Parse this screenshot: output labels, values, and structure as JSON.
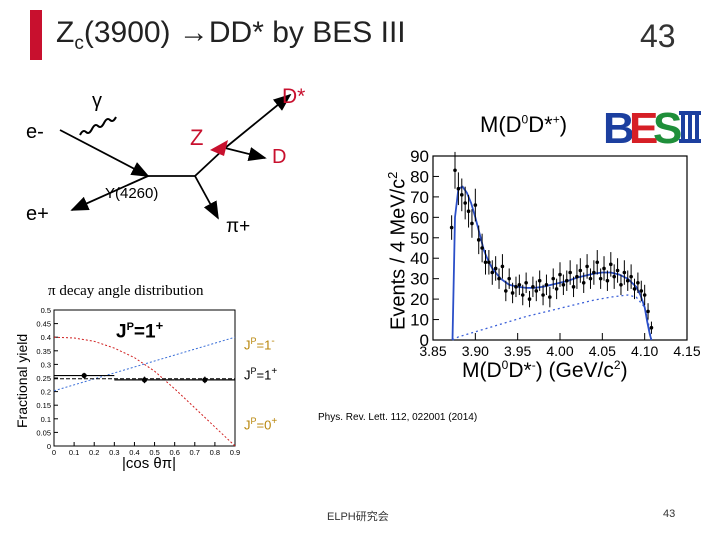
{
  "slide": {
    "title_main": "Z",
    "title_sub": "c",
    "title_rest": "(3900) →DD* by BES III",
    "page_number": "43",
    "footer_org": "ELPH研究会",
    "footer_page": "43",
    "reference": "Phys. Rev. Lett. 112, 022001 (2014)"
  },
  "feynman": {
    "gamma": "γ",
    "e_minus": "e-",
    "e_plus": "e+",
    "z": "Z",
    "d_star": "D*",
    "d": "D",
    "y4260": "Y(4260)",
    "pi_plus": "π+"
  },
  "chart_data": [
    {
      "type": "histogram",
      "title": "M(D0D*+)",
      "xlabel": "M(D0D*-) (GeV/c2)",
      "ylabel": "Events / 4 MeV/c2",
      "xlim": [
        3.85,
        4.15
      ],
      "ylim": [
        0,
        90
      ],
      "x_ticks": [
        "3.85",
        "3.90",
        "3.95",
        "4.00",
        "4.05",
        "4.10",
        "4.15"
      ],
      "y_ticks": [
        "0",
        "10",
        "20",
        "30",
        "40",
        "50",
        "60",
        "70",
        "80",
        "90"
      ],
      "points": [
        {
          "x": 3.872,
          "y": 55,
          "err": 6
        },
        {
          "x": 3.876,
          "y": 83,
          "err": 9
        },
        {
          "x": 3.88,
          "y": 74,
          "err": 8
        },
        {
          "x": 3.884,
          "y": 71,
          "err": 8
        },
        {
          "x": 3.888,
          "y": 67,
          "err": 8
        },
        {
          "x": 3.892,
          "y": 63,
          "err": 8
        },
        {
          "x": 3.896,
          "y": 57,
          "err": 7
        },
        {
          "x": 3.9,
          "y": 66,
          "err": 8
        },
        {
          "x": 3.904,
          "y": 49,
          "err": 7
        },
        {
          "x": 3.908,
          "y": 45,
          "err": 7
        },
        {
          "x": 3.912,
          "y": 38,
          "err": 6
        },
        {
          "x": 3.916,
          "y": 38,
          "err": 6
        },
        {
          "x": 3.92,
          "y": 33,
          "err": 6
        },
        {
          "x": 3.924,
          "y": 35,
          "err": 6
        },
        {
          "x": 3.928,
          "y": 30,
          "err": 5
        },
        {
          "x": 3.932,
          "y": 36,
          "err": 6
        },
        {
          "x": 3.936,
          "y": 24,
          "err": 5
        },
        {
          "x": 3.94,
          "y": 30,
          "err": 5
        },
        {
          "x": 3.944,
          "y": 23,
          "err": 5
        },
        {
          "x": 3.948,
          "y": 26,
          "err": 5
        },
        {
          "x": 3.952,
          "y": 27,
          "err": 5
        },
        {
          "x": 3.956,
          "y": 22,
          "err": 5
        },
        {
          "x": 3.96,
          "y": 28,
          "err": 5
        },
        {
          "x": 3.964,
          "y": 20,
          "err": 4
        },
        {
          "x": 3.968,
          "y": 26,
          "err": 5
        },
        {
          "x": 3.972,
          "y": 24,
          "err": 5
        },
        {
          "x": 3.976,
          "y": 29,
          "err": 5
        },
        {
          "x": 3.98,
          "y": 22,
          "err": 5
        },
        {
          "x": 3.984,
          "y": 27,
          "err": 5
        },
        {
          "x": 3.988,
          "y": 21,
          "err": 5
        },
        {
          "x": 3.992,
          "y": 30,
          "err": 5
        },
        {
          "x": 3.996,
          "y": 25,
          "err": 5
        },
        {
          "x": 4.0,
          "y": 32,
          "err": 6
        },
        {
          "x": 4.004,
          "y": 27,
          "err": 5
        },
        {
          "x": 4.008,
          "y": 29,
          "err": 5
        },
        {
          "x": 4.012,
          "y": 33,
          "err": 6
        },
        {
          "x": 4.016,
          "y": 26,
          "err": 5
        },
        {
          "x": 4.02,
          "y": 31,
          "err": 6
        },
        {
          "x": 4.024,
          "y": 34,
          "err": 6
        },
        {
          "x": 4.028,
          "y": 28,
          "err": 5
        },
        {
          "x": 4.032,
          "y": 36,
          "err": 6
        },
        {
          "x": 4.036,
          "y": 30,
          "err": 5
        },
        {
          "x": 4.04,
          "y": 33,
          "err": 6
        },
        {
          "x": 4.044,
          "y": 38,
          "err": 6
        },
        {
          "x": 4.048,
          "y": 30,
          "err": 5
        },
        {
          "x": 4.052,
          "y": 35,
          "err": 6
        },
        {
          "x": 4.056,
          "y": 29,
          "err": 5
        },
        {
          "x": 4.06,
          "y": 37,
          "err": 6
        },
        {
          "x": 4.064,
          "y": 31,
          "err": 6
        },
        {
          "x": 4.068,
          "y": 34,
          "err": 6
        },
        {
          "x": 4.072,
          "y": 27,
          "err": 5
        },
        {
          "x": 4.076,
          "y": 33,
          "err": 6
        },
        {
          "x": 4.08,
          "y": 29,
          "err": 5
        },
        {
          "x": 4.084,
          "y": 31,
          "err": 6
        },
        {
          "x": 4.088,
          "y": 25,
          "err": 5
        },
        {
          "x": 4.092,
          "y": 28,
          "err": 5
        },
        {
          "x": 4.096,
          "y": 24,
          "err": 5
        },
        {
          "x": 4.1,
          "y": 22,
          "err": 5
        },
        {
          "x": 4.104,
          "y": 14,
          "err": 4
        },
        {
          "x": 4.108,
          "y": 6,
          "err": 3
        }
      ],
      "fit": {
        "x": [
          3.873,
          3.876,
          3.88,
          3.885,
          3.89,
          3.895,
          3.9,
          3.905,
          3.91,
          3.915,
          3.92,
          3.93,
          3.94,
          3.95,
          3.96,
          3.97,
          3.98,
          3.99,
          4.0,
          4.01,
          4.02,
          4.03,
          4.04,
          4.05,
          4.06,
          4.07,
          4.08,
          4.09,
          4.095,
          4.1,
          4.103,
          4.106,
          4.108
        ],
        "y": [
          0,
          60,
          74,
          75,
          72,
          67,
          60,
          52,
          44,
          39,
          35,
          30,
          27,
          26,
          25.5,
          25.5,
          26,
          27,
          28,
          29,
          30.5,
          31.5,
          32.5,
          33,
          33,
          32,
          30,
          26,
          22,
          16,
          9,
          3,
          0
        ]
      },
      "background": {
        "x": [
          3.873,
          3.88,
          3.9,
          3.92,
          3.94,
          3.96,
          3.98,
          4.0,
          4.02,
          4.04,
          4.06,
          4.08,
          4.09,
          4.1,
          4.104,
          4.108
        ],
        "y": [
          0,
          1.5,
          4,
          6.5,
          9,
          11.5,
          13.5,
          15.5,
          17.5,
          19.5,
          21,
          22,
          21,
          16,
          9,
          0
        ]
      }
    },
    {
      "type": "scatter",
      "title": "π decay angle distribution",
      "xlabel": "|cos θπ|",
      "ylabel": "Fractional yield",
      "xlim": [
        0,
        0.9
      ],
      "ylim": [
        0,
        0.5
      ],
      "x_ticks": [
        "0",
        "0.1",
        "0.2",
        "0.3",
        "0.4",
        "0.5",
        "0.6",
        "0.7",
        "0.8",
        "0.9"
      ],
      "y_ticks": [
        "0",
        "0.05",
        "0.1",
        "0.15",
        "0.2",
        "0.25",
        "0.3",
        "0.35",
        "0.4",
        "0.45",
        "0.5"
      ],
      "annotation": "JP=1+",
      "points": [
        {
          "x": 0.15,
          "y": 0.259,
          "xerr": 0.15,
          "yerr": 0.01
        },
        {
          "x": 0.45,
          "y": 0.243,
          "xerr": 0.15,
          "yerr": 0.012
        },
        {
          "x": 0.75,
          "y": 0.243,
          "xerr": 0.15,
          "yerr": 0.012
        }
      ],
      "series": [
        {
          "name": "JP=1-",
          "x": [
            0,
            0.9
          ],
          "y": [
            0.203,
            0.4
          ]
        },
        {
          "name": "JP=1+",
          "x": [
            0,
            0.9
          ],
          "y": [
            0.247,
            0.247
          ]
        },
        {
          "name": "JP=0+",
          "x": [
            0,
            0.1,
            0.2,
            0.3,
            0.4,
            0.5,
            0.6,
            0.7,
            0.8,
            0.9
          ],
          "y": [
            0.4,
            0.397,
            0.385,
            0.36,
            0.325,
            0.275,
            0.21,
            0.14,
            0.07,
            0.0
          ]
        }
      ],
      "colors": {
        "JP=1-": "#3a6fd8",
        "JP=1+": "#000000",
        "JP=0+": "#d02020"
      }
    }
  ]
}
